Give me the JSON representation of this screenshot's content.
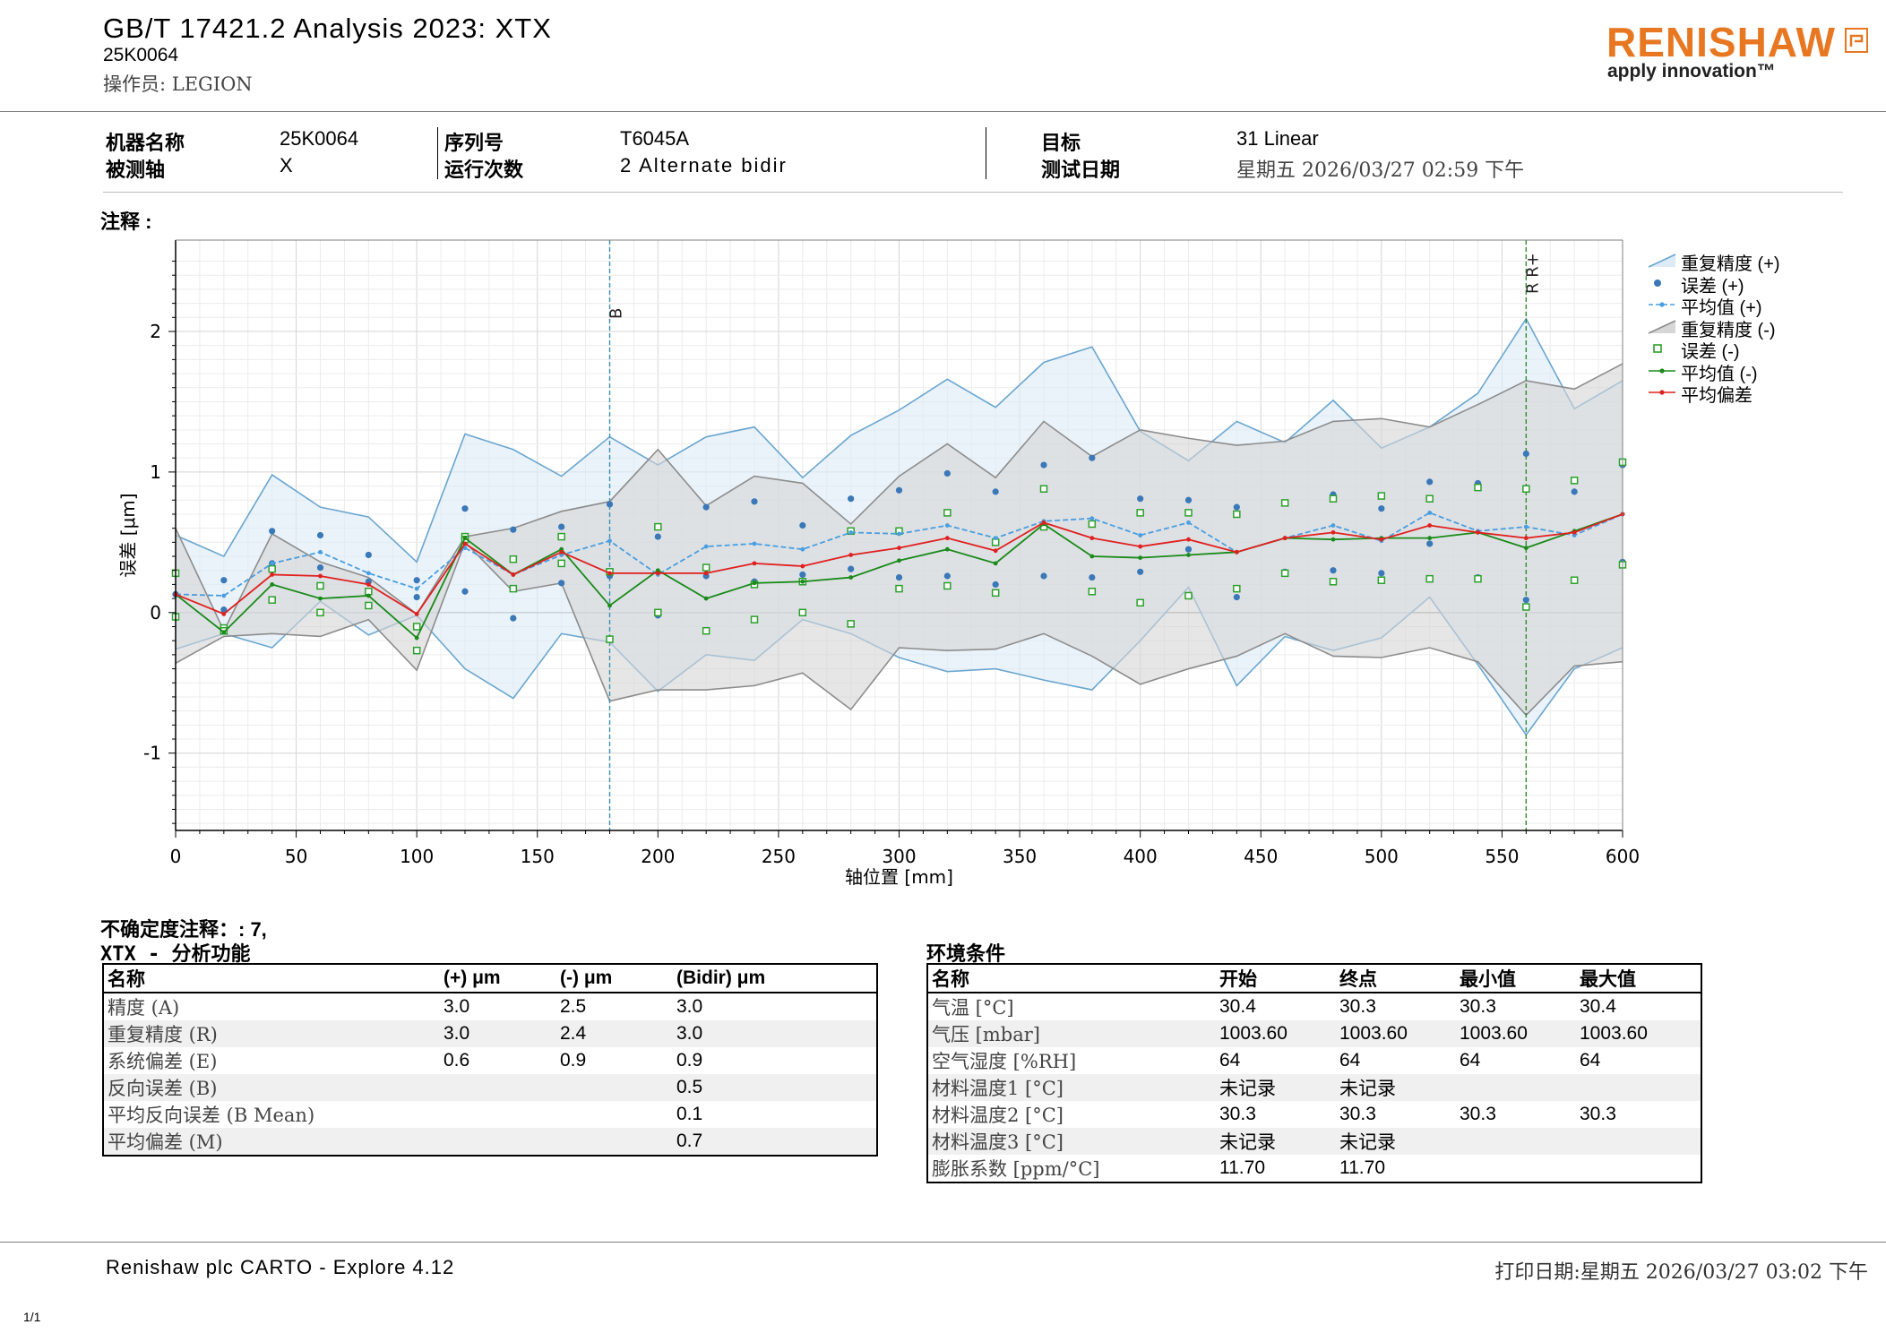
{
  "header": {
    "title": "GB/T 17421.2 Analysis 2023: XTX",
    "machine_code": "25K0064",
    "operator": "操作员: LEGION"
  },
  "logo": {
    "brand": "RENISHAW",
    "tagline": "apply innovation™"
  },
  "info": {
    "machine_name_label": "机器名称",
    "machine_name": "25K0064",
    "axis_label": "被测轴",
    "axis": "X",
    "serial_label": "序列号",
    "serial": "T6045A",
    "runs_label": "运行次数",
    "runs": "2 Alternate bidir",
    "target_label": "目标",
    "target": "31 Linear",
    "date_label": "测试日期",
    "date": "星期五 2026/03/27 02:59 下午"
  },
  "notes_label": "注释 :",
  "chart_data": {
    "type": "line",
    "xlabel": "轴位置 [mm]",
    "ylabel": "误差 [μm]",
    "xlim": [
      0,
      600
    ],
    "ylim": [
      -1.55,
      2.65
    ],
    "x_ticks": [
      0,
      50,
      100,
      150,
      200,
      250,
      300,
      350,
      400,
      450,
      500,
      550,
      600
    ],
    "y_ticks": [
      -1,
      0,
      1,
      2
    ],
    "grid": true,
    "legend_position": "right",
    "markers": [
      {
        "x": 180,
        "label": "B",
        "color": "#3a8fb0"
      },
      {
        "x": 560,
        "label": "R R+",
        "color": "#2e8b2e"
      }
    ],
    "x": [
      0,
      20,
      40,
      60,
      80,
      100,
      120,
      140,
      160,
      180,
      200,
      220,
      240,
      260,
      280,
      300,
      320,
      340,
      360,
      380,
      400,
      420,
      440,
      460,
      480,
      500,
      520,
      540,
      560,
      580,
      600
    ],
    "series": [
      {
        "name": "重复精度 (+)",
        "kind": "band",
        "color": "#6aa6d0",
        "fill": "#dcebf6",
        "upper": [
          0.55,
          0.4,
          0.98,
          0.75,
          0.68,
          0.36,
          1.27,
          1.16,
          0.97,
          1.25,
          1.05,
          1.25,
          1.32,
          0.96,
          1.26,
          1.44,
          1.66,
          1.46,
          1.78,
          1.89,
          1.29,
          1.08,
          1.36,
          1.21,
          1.51,
          1.17,
          1.32,
          1.56,
          2.09,
          1.45,
          1.65
        ],
        "lower": [
          -0.26,
          -0.15,
          -0.25,
          0.08,
          -0.16,
          -0.02,
          -0.4,
          -0.61,
          -0.15,
          -0.21,
          -0.56,
          -0.3,
          -0.34,
          -0.05,
          -0.15,
          -0.32,
          -0.42,
          -0.4,
          -0.48,
          -0.55,
          -0.2,
          0.18,
          -0.52,
          -0.17,
          -0.27,
          -0.18,
          0.11,
          -0.37,
          -0.87,
          -0.4,
          -0.25
        ]
      },
      {
        "name": "误差 (+)",
        "kind": "points",
        "color": "#3a78b8",
        "values": [
          [
            0.13,
            0.13
          ],
          [
            0.23,
            0.02
          ],
          [
            0.58,
            0.35
          ],
          [
            0.55,
            0.32
          ],
          [
            0.41,
            0.22
          ],
          [
            0.23,
            0.11
          ],
          [
            0.74,
            0.15
          ],
          [
            0.59,
            -0.04
          ],
          [
            0.61,
            0.21
          ],
          [
            0.77,
            0.26
          ],
          [
            0.54,
            -0.02
          ],
          [
            0.75,
            0.26
          ],
          [
            0.79,
            0.22
          ],
          [
            0.62,
            0.27
          ],
          [
            0.81,
            0.31
          ],
          [
            0.87,
            0.25
          ],
          [
            0.99,
            0.26
          ],
          [
            0.86,
            0.2
          ],
          [
            1.05,
            0.26
          ],
          [
            1.1,
            0.25
          ],
          [
            0.81,
            0.29
          ],
          [
            0.8,
            0.45
          ],
          [
            0.75,
            0.11
          ],
          [
            0.78,
            0.29
          ],
          [
            0.84,
            0.3
          ],
          [
            0.74,
            0.28
          ],
          [
            0.93,
            0.49
          ],
          [
            0.92,
            0.25
          ],
          [
            1.13,
            0.09
          ],
          [
            0.86,
            0.23
          ],
          [
            1.05,
            0.36
          ]
        ]
      },
      {
        "name": "平均值 (+)",
        "kind": "line",
        "color": "#4a9ee0",
        "dashed": true,
        "values": [
          0.13,
          0.12,
          0.35,
          0.43,
          0.28,
          0.17,
          0.46,
          0.27,
          0.41,
          0.51,
          0.27,
          0.47,
          0.49,
          0.45,
          0.57,
          0.56,
          0.62,
          0.53,
          0.65,
          0.67,
          0.55,
          0.64,
          0.43,
          0.53,
          0.62,
          0.51,
          0.71,
          0.58,
          0.61,
          0.55,
          0.7
        ]
      },
      {
        "name": "重复精度 (-)",
        "kind": "band",
        "color": "#8c8c8c",
        "fill": "#d6d6d6",
        "upper": [
          0.6,
          -0.13,
          0.56,
          0.36,
          0.25,
          -0.01,
          0.54,
          0.6,
          0.72,
          0.79,
          1.16,
          0.76,
          0.97,
          0.92,
          0.63,
          0.97,
          1.2,
          0.96,
          1.36,
          1.11,
          1.3,
          1.24,
          1.19,
          1.22,
          1.36,
          1.38,
          1.32,
          1.48,
          1.65,
          1.59,
          1.77
        ],
        "lower": [
          -0.36,
          -0.17,
          -0.15,
          -0.17,
          -0.05,
          -0.41,
          0.5,
          0.15,
          0.21,
          -0.63,
          -0.55,
          -0.55,
          -0.52,
          -0.43,
          -0.69,
          -0.25,
          -0.27,
          -0.26,
          -0.15,
          -0.31,
          -0.51,
          -0.4,
          -0.31,
          -0.15,
          -0.31,
          -0.32,
          -0.25,
          -0.35,
          -0.73,
          -0.38,
          -0.35
        ]
      },
      {
        "name": "误差 (-)",
        "kind": "squares",
        "color": "#2ca02c",
        "values": [
          [
            0.28,
            -0.03
          ],
          [
            -0.11,
            -0.13
          ],
          [
            0.31,
            0.09
          ],
          [
            0.19,
            0.0
          ],
          [
            0.15,
            0.05
          ],
          [
            -0.1,
            -0.27
          ],
          [
            0.54,
            0.52
          ],
          [
            0.38,
            0.17
          ],
          [
            0.54,
            0.35
          ],
          [
            0.29,
            -0.19
          ],
          [
            0.61,
            -0.0
          ],
          [
            0.32,
            -0.13
          ],
          [
            0.2,
            -0.05
          ],
          [
            0.22,
            -0.0
          ],
          [
            0.58,
            -0.08
          ],
          [
            0.58,
            0.17
          ],
          [
            0.71,
            0.19
          ],
          [
            0.5,
            0.14
          ],
          [
            0.88,
            0.61
          ],
          [
            0.63,
            0.15
          ],
          [
            0.71,
            0.07
          ],
          [
            0.71,
            0.12
          ],
          [
            0.7,
            0.17
          ],
          [
            0.78,
            0.28
          ],
          [
            0.81,
            0.22
          ],
          [
            0.83,
            0.23
          ],
          [
            0.81,
            0.24
          ],
          [
            0.89,
            0.24
          ],
          [
            0.88,
            0.04
          ],
          [
            0.94,
            0.23
          ],
          [
            1.07,
            0.34
          ]
        ]
      },
      {
        "name": "平均值 (-)",
        "kind": "line",
        "color": "#1a8a1a",
        "dashed": false,
        "values": [
          0.13,
          -0.14,
          0.2,
          0.1,
          0.12,
          -0.18,
          0.53,
          0.27,
          0.45,
          0.05,
          0.3,
          0.1,
          0.21,
          0.22,
          0.25,
          0.37,
          0.45,
          0.35,
          0.63,
          0.4,
          0.39,
          0.41,
          0.43,
          0.53,
          0.52,
          0.53,
          0.53,
          0.57,
          0.46,
          0.58,
          0.7
        ]
      },
      {
        "name": "平均偏差",
        "kind": "line",
        "color": "#e0201e",
        "dashed": false,
        "values": [
          0.13,
          -0.01,
          0.27,
          0.26,
          0.2,
          -0.01,
          0.49,
          0.27,
          0.43,
          0.28,
          0.28,
          0.28,
          0.35,
          0.33,
          0.41,
          0.46,
          0.53,
          0.44,
          0.64,
          0.53,
          0.47,
          0.52,
          0.43,
          0.53,
          0.57,
          0.52,
          0.62,
          0.57,
          0.53,
          0.57,
          0.7
        ]
      }
    ]
  },
  "uncertainty_note": "不确定度注释：: 7,",
  "analysis": {
    "title": "XTX - 分析功能",
    "headers": [
      "名称",
      "(+) μm",
      "(-) μm",
      "(Bidir) μm"
    ],
    "rows": [
      [
        "精度 (A)",
        "3.0",
        "2.5",
        "3.0"
      ],
      [
        "重复精度 (R)",
        "3.0",
        "2.4",
        "3.0"
      ],
      [
        "系统偏差 (E)",
        "0.6",
        "0.9",
        "0.9"
      ],
      [
        "反向误差 (B)",
        "",
        "",
        "0.5"
      ],
      [
        "平均反向误差 (B Mean)",
        "",
        "",
        "0.1"
      ],
      [
        "平均偏差 (M)",
        "",
        "",
        "0.7"
      ]
    ]
  },
  "environment": {
    "title": "环境条件",
    "headers": [
      "名称",
      "开始",
      "终点",
      "最小值",
      "最大值"
    ],
    "rows": [
      [
        "气温 [°C]",
        "30.4",
        "30.3",
        "30.3",
        "30.4"
      ],
      [
        "气压 [mbar]",
        "1003.60",
        "1003.60",
        "1003.60",
        "1003.60"
      ],
      [
        "空气湿度 [%RH]",
        "64",
        "64",
        "64",
        "64"
      ],
      [
        "材料温度1 [°C]",
        "未记录",
        "未记录",
        "",
        ""
      ],
      [
        "材料温度2 [°C]",
        "30.3",
        "30.3",
        "30.3",
        "30.3"
      ],
      [
        "材料温度3 [°C]",
        "未记录",
        "未记录",
        "",
        ""
      ],
      [
        "膨胀系数 [ppm/°C]",
        "11.70",
        "11.70",
        "",
        ""
      ]
    ]
  },
  "footer": {
    "software": "Renishaw plc CARTO - Explore 4.12",
    "print_date": "打印日期:星期五 2026/03/27 03:02 下午",
    "page": "1/1"
  }
}
